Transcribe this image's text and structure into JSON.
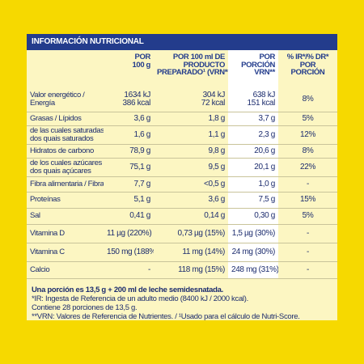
{
  "header": {
    "title": "INFORMACIÓN NUTRICIONAL"
  },
  "table": {
    "columns": [
      [],
      [
        "POR",
        "100 g"
      ],
      [
        "POR 100 ml DE",
        "PRODUCTO",
        "PREPARADO¹ (VRN**)"
      ],
      [
        "POR",
        "PORCIÓN",
        "VRN**"
      ],
      [
        "% IR*/% DR*",
        "POR",
        "PORCIÓN"
      ]
    ],
    "rows": [
      [
        [
          "Valor energético /",
          "Energía"
        ],
        [
          "1634 kJ",
          "386 kcal"
        ],
        [
          "304 kJ",
          "72 kcal"
        ],
        [
          "638 kJ",
          "151 kcal"
        ],
        [
          "8%"
        ]
      ],
      [
        [
          "Grasas / Lípidos"
        ],
        [
          "3,6 g"
        ],
        [
          "1,8 g"
        ],
        [
          "3,7 g"
        ],
        [
          "5%"
        ]
      ],
      [
        [
          "de las cuales saturadas /",
          "dos quais saturados"
        ],
        [
          "1,6 g"
        ],
        [
          "1,1 g"
        ],
        [
          "2,3 g"
        ],
        [
          "12%"
        ]
      ],
      [
        [
          "Hidratos de carbono"
        ],
        [
          "78,9 g"
        ],
        [
          "9,8 g"
        ],
        [
          "20,6 g"
        ],
        [
          "8%"
        ]
      ],
      [
        [
          "de los cuales azúcares /",
          "dos quais açúcares"
        ],
        [
          "75,1 g"
        ],
        [
          "9,5 g"
        ],
        [
          "20,1 g"
        ],
        [
          "22%"
        ]
      ],
      [
        [
          "Fibra alimentaria / Fibra"
        ],
        [
          "7,7 g"
        ],
        [
          "<0,5 g"
        ],
        [
          "1,0 g"
        ],
        [
          "-"
        ]
      ],
      [
        [
          "Proteínas"
        ],
        [
          "5,1 g"
        ],
        [
          "3,6 g"
        ],
        [
          "7,5 g"
        ],
        [
          "15%"
        ]
      ],
      [
        [
          "Sal"
        ],
        [
          "0,41 g"
        ],
        [
          "0,14 g"
        ],
        [
          "0,30 g"
        ],
        [
          "5%"
        ]
      ],
      [
        [
          "Vitamina D"
        ],
        [
          "11 µg (220%)"
        ],
        [
          "0,73 µg (15%)"
        ],
        [
          "1,5 µg (30%)"
        ],
        [
          "-"
        ]
      ],
      [
        [
          "Vitamina C"
        ],
        [
          "150 mg (188%)"
        ],
        [
          "11 mg (14%)"
        ],
        [
          "24 mg (30%)"
        ],
        [
          "-"
        ]
      ],
      [
        [
          "Calcio"
        ],
        [
          "-"
        ],
        [
          "118 mg (15%)"
        ],
        [
          "248 mg (31%)"
        ],
        [
          "-"
        ]
      ]
    ]
  },
  "footnotes": {
    "serving": "Una porción es 13,5 g + 200 ml de leche semidesnatada.",
    "lines": [
      "*IR: Ingesta de Referencia de un adulto medio (8400 kJ / 2000 kcal).",
      "Contiene 28 porciones de 13,5 g.",
      "**VRN: Valores de Referencia de Nutrientes. / ¹Usado para el cálculo de Nutri-Score."
    ]
  }
}
